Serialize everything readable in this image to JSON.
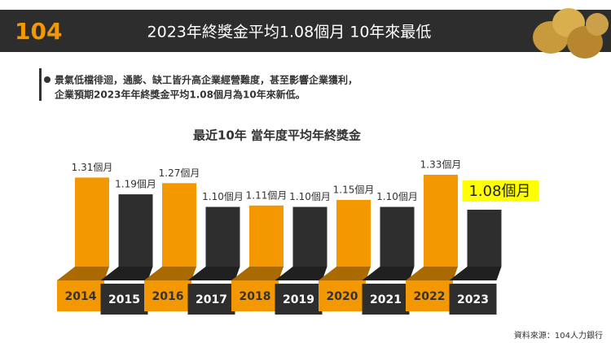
{
  "header": {
    "logo": "104",
    "title": "2023年終獎金平均1.08個月  10年來最低"
  },
  "bullet": {
    "lines": [
      "景氣低檔徘迴，通膨、缺工皆升高企業經營難度，甚至影響企業獲利，",
      "企業預期2023年年終獎金平均1.08個月為10年來新低。"
    ]
  },
  "chart_data": {
    "type": "bar",
    "title": "最近10年  當年度平均年終獎金",
    "categories": [
      "2014",
      "2015",
      "2016",
      "2017",
      "2018",
      "2019",
      "2020",
      "2021",
      "2022",
      "2023"
    ],
    "values": [
      1.31,
      1.19,
      1.27,
      1.1,
      1.11,
      1.1,
      1.15,
      1.1,
      1.33,
      1.08
    ],
    "value_labels": [
      "1.31個月",
      "1.19個月",
      "1.27個月",
      "1.10個月",
      "1.11個月",
      "1.10個月",
      "1.15個月",
      "1.10個月",
      "1.33個月",
      "1.08個月"
    ],
    "colors": [
      "#f39800",
      "#2e2e2e",
      "#f39800",
      "#2e2e2e",
      "#f39800",
      "#2e2e2e",
      "#f39800",
      "#2e2e2e",
      "#f39800",
      "#2e2e2e"
    ]
  },
  "source": "資料來源：104人力銀行"
}
